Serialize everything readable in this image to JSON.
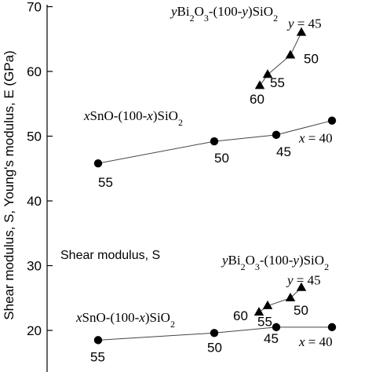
{
  "chart_data": {
    "type": "scatter",
    "ylabel": "Shear modulus, S, Young's modulus, E (GPa)",
    "ylim": [
      15,
      70
    ],
    "yticks": [
      20,
      30,
      40,
      50,
      60,
      70
    ],
    "grid": false,
    "annotations": {
      "shear_label": "Shear modulus, S",
      "sno_young_formula": "xSnO-(100-x)SiO2",
      "bi_young_formula": "yBi2O3-(100-y)SiO2",
      "sno_shear_formula": "xSnO-(100-x)SiO2",
      "bi_shear_formula": "yBi2O3-(100-y)SiO2"
    },
    "series": [
      {
        "marker": "circle",
        "group": "young",
        "points": [
          {
            "y": 45.8,
            "label": "55"
          },
          {
            "y": 49.2,
            "label": "50"
          },
          {
            "y": 50.2,
            "label": "45"
          },
          {
            "y": 52.4,
            "label": "x = 40"
          }
        ]
      },
      {
        "marker": "triangle",
        "group": "young",
        "points": [
          {
            "y": 57.8,
            "label": "60"
          },
          {
            "y": 59.5,
            "label": "55"
          },
          {
            "y": 62.5,
            "label": "50"
          },
          {
            "y": 66.0,
            "label": "y = 45"
          }
        ]
      },
      {
        "marker": "circle",
        "group": "shear",
        "points": [
          {
            "y": 18.5,
            "label": "55"
          },
          {
            "y": 19.6,
            "label": "50"
          },
          {
            "y": 20.5,
            "label": "45"
          },
          {
            "y": 20.5,
            "label": "x = 40"
          }
        ]
      },
      {
        "marker": "triangle",
        "group": "shear",
        "points": [
          {
            "y": 22.8,
            "label": "60"
          },
          {
            "y": 23.8,
            "label": "55"
          },
          {
            "y": 25.0,
            "label": "50"
          },
          {
            "y": 26.6,
            "label": "y = 45"
          }
        ]
      }
    ]
  }
}
